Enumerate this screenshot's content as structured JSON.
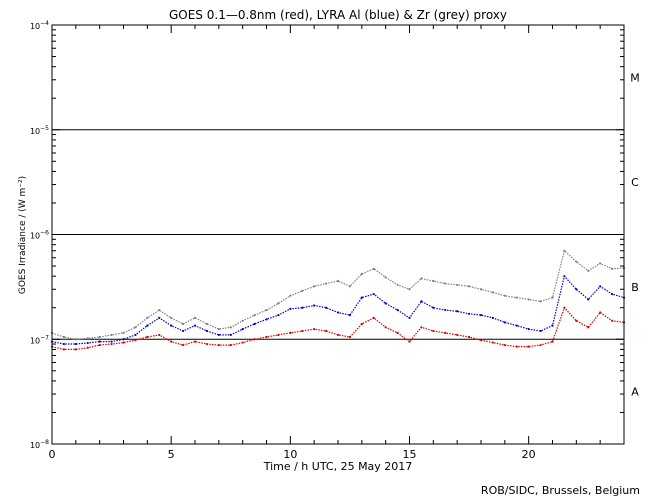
{
  "chart_data": {
    "type": "line",
    "title": "GOES 0.1—0.8nm (red), LYRA Al (blue) & Zr (grey) proxy",
    "xlabel": "Time / h UTC, 25 May 2017",
    "ylabel": "GOES Irradiance / (W m⁻²)",
    "credit": "ROB/SIDC, Brussels, Belgium",
    "xlim": [
      0,
      24
    ],
    "ylim": [
      1e-08,
      0.0001
    ],
    "yscale": "log",
    "x_ticks": [
      0,
      5,
      10,
      15,
      20
    ],
    "x_tick_labels": [
      "0",
      "5",
      "10",
      "15",
      "20"
    ],
    "y_ticks": [
      {
        "value": 1e-08,
        "base": "10",
        "exp": "−8"
      },
      {
        "value": 1e-07,
        "base": "10",
        "exp": "−7"
      },
      {
        "value": 1e-06,
        "base": "10",
        "exp": "−6"
      },
      {
        "value": 1e-05,
        "base": "10",
        "exp": "−5"
      },
      {
        "value": 0.0001,
        "base": "10",
        "exp": "−4"
      }
    ],
    "class_lines": [
      1e-07,
      1e-06,
      1e-05
    ],
    "flare_classes": [
      {
        "label": "A",
        "value": 3.16e-08
      },
      {
        "label": "B",
        "value": 3.16e-07
      },
      {
        "label": "C",
        "value": 3.16e-06
      },
      {
        "label": "M",
        "value": 3.16e-05
      }
    ],
    "series": [
      {
        "color": "#808080",
        "x": [
          0,
          0.5,
          1,
          1.5,
          2,
          2.5,
          3,
          3.5,
          4,
          4.5,
          5,
          5.5,
          6,
          6.5,
          7,
          7.5,
          8,
          8.5,
          9,
          9.5,
          10,
          10.5,
          11,
          11.5,
          12,
          12.5,
          13,
          13.5,
          14,
          14.5,
          15,
          15.5,
          16,
          16.5,
          17,
          17.5,
          18,
          18.5,
          19,
          19.5,
          20,
          20.5,
          21,
          21.5,
          22,
          22.5,
          23,
          23.5,
          24
        ],
        "y": [
          1.15e-07,
          1.05e-07,
          1e-07,
          1.02e-07,
          1.05e-07,
          1.1e-07,
          1.15e-07,
          1.3e-07,
          1.6e-07,
          1.9e-07,
          1.6e-07,
          1.4e-07,
          1.6e-07,
          1.4e-07,
          1.25e-07,
          1.3e-07,
          1.5e-07,
          1.7e-07,
          1.9e-07,
          2.2e-07,
          2.6e-07,
          2.9e-07,
          3.2e-07,
          3.4e-07,
          3.6e-07,
          3.2e-07,
          4.2e-07,
          4.7e-07,
          3.9e-07,
          3.3e-07,
          3e-07,
          3.8e-07,
          3.6e-07,
          3.4e-07,
          3.3e-07,
          3.2e-07,
          3e-07,
          2.8e-07,
          2.6e-07,
          2.5e-07,
          2.4e-07,
          2.3e-07,
          2.5e-07,
          7e-07,
          5.5e-07,
          4.5e-07,
          5.3e-07,
          4.7e-07,
          4.8e-07
        ]
      },
      {
        "color": "#0000cc",
        "x": [
          0,
          0.5,
          1,
          1.5,
          2,
          2.5,
          3,
          3.5,
          4,
          4.5,
          5,
          5.5,
          6,
          6.5,
          7,
          7.5,
          8,
          8.5,
          9,
          9.5,
          10,
          10.5,
          11,
          11.5,
          12,
          12.5,
          13,
          13.5,
          14,
          14.5,
          15,
          15.5,
          16,
          16.5,
          17,
          17.5,
          18,
          18.5,
          19,
          19.5,
          20,
          20.5,
          21,
          21.5,
          22,
          22.5,
          23,
          23.5,
          24
        ],
        "y": [
          9.5e-08,
          9e-08,
          9e-08,
          9.2e-08,
          9.5e-08,
          9.5e-08,
          1e-07,
          1.1e-07,
          1.35e-07,
          1.6e-07,
          1.35e-07,
          1.2e-07,
          1.35e-07,
          1.2e-07,
          1.1e-07,
          1.1e-07,
          1.25e-07,
          1.4e-07,
          1.55e-07,
          1.7e-07,
          1.95e-07,
          2e-07,
          2.1e-07,
          2e-07,
          1.8e-07,
          1.7e-07,
          2.5e-07,
          2.7e-07,
          2.2e-07,
          1.9e-07,
          1.6e-07,
          2.3e-07,
          2e-07,
          1.9e-07,
          1.85e-07,
          1.75e-07,
          1.7e-07,
          1.6e-07,
          1.45e-07,
          1.35e-07,
          1.25e-07,
          1.2e-07,
          1.35e-07,
          4e-07,
          3e-07,
          2.4e-07,
          3.2e-07,
          2.7e-07,
          2.5e-07
        ]
      },
      {
        "color": "#dd0000",
        "x": [
          0,
          0.5,
          1,
          1.5,
          2,
          2.5,
          3,
          3.5,
          4,
          4.5,
          5,
          5.5,
          6,
          6.5,
          7,
          7.5,
          8,
          8.5,
          9,
          9.5,
          10,
          10.5,
          11,
          11.5,
          12,
          12.5,
          13,
          13.5,
          14,
          14.5,
          15,
          15.5,
          16,
          16.5,
          17,
          17.5,
          18,
          18.5,
          19,
          19.5,
          20,
          20.5,
          21,
          21.5,
          22,
          22.5,
          23,
          23.5,
          24
        ],
        "y": [
          8.5e-08,
          8e-08,
          8e-08,
          8.3e-08,
          8.8e-08,
          9e-08,
          9.3e-08,
          9.8e-08,
          1.05e-07,
          1.1e-07,
          9.5e-08,
          8.8e-08,
          9.5e-08,
          9e-08,
          8.8e-08,
          8.8e-08,
          9.3e-08,
          1e-07,
          1.05e-07,
          1.1e-07,
          1.15e-07,
          1.2e-07,
          1.25e-07,
          1.2e-07,
          1.1e-07,
          1.05e-07,
          1.4e-07,
          1.6e-07,
          1.3e-07,
          1.15e-07,
          9.5e-08,
          1.3e-07,
          1.2e-07,
          1.15e-07,
          1.1e-07,
          1.05e-07,
          9.8e-08,
          9.3e-08,
          8.8e-08,
          8.5e-08,
          8.5e-08,
          8.8e-08,
          9.5e-08,
          2e-07,
          1.5e-07,
          1.3e-07,
          1.8e-07,
          1.5e-07,
          1.45e-07
        ]
      }
    ]
  }
}
